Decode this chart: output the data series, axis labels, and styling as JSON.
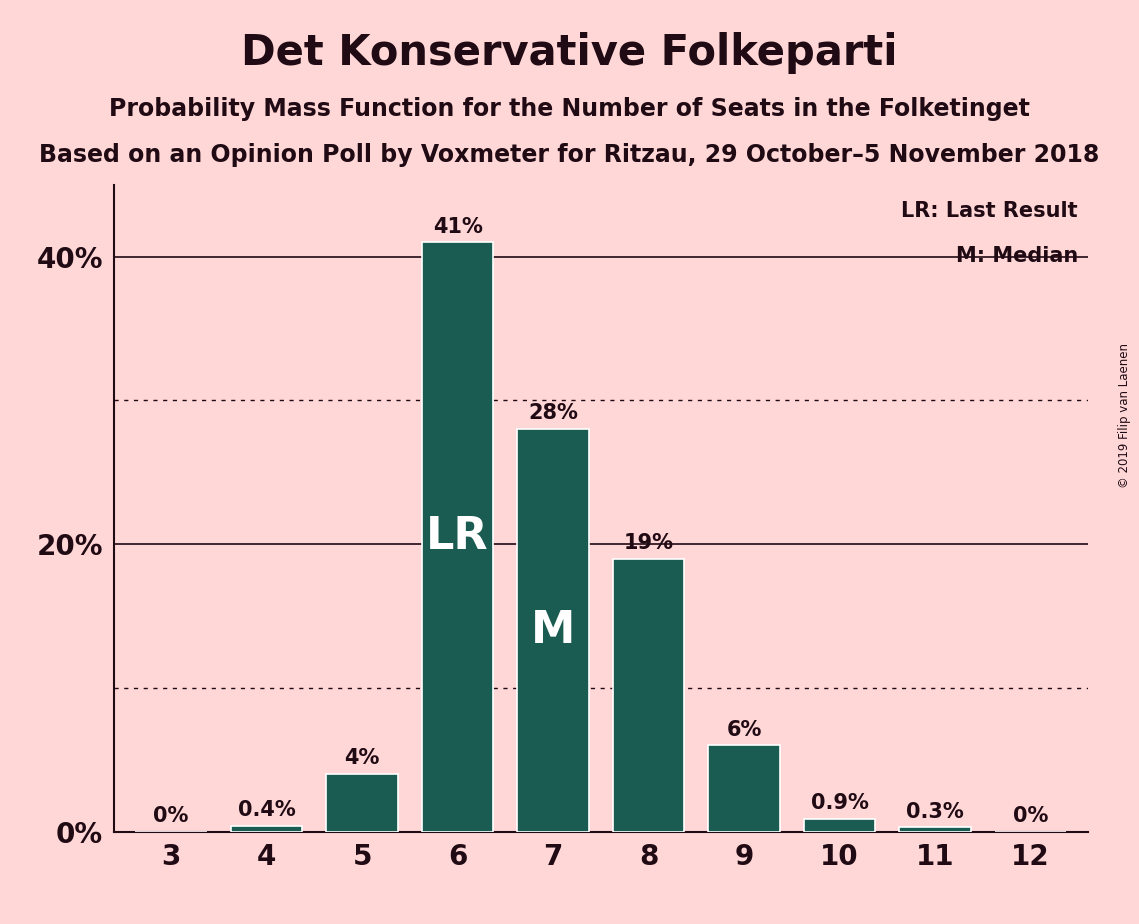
{
  "title": "Det Konservative Folkeparti",
  "subtitle1": "Probability Mass Function for the Number of Seats in the Folketinget",
  "subtitle2": "Based on an Opinion Poll by Voxmeter for Ritzau, 29 October–5 November 2018",
  "copyright": "© 2019 Filip van Laenen",
  "categories": [
    3,
    4,
    5,
    6,
    7,
    8,
    9,
    10,
    11,
    12
  ],
  "values": [
    0.0,
    0.4,
    4.0,
    41.0,
    28.0,
    19.0,
    6.0,
    0.9,
    0.3,
    0.0
  ],
  "bar_color": "#1a5c52",
  "bg_color": "#ffd7d7",
  "label_color": "#200a14",
  "bar_labels": [
    "0%",
    "0.4%",
    "4%",
    "41%",
    "28%",
    "19%",
    "6%",
    "0.9%",
    "0.3%",
    "0%"
  ],
  "lr_bar_index": 3,
  "median_bar_index": 4,
  "lr_label": "LR",
  "median_label": "M",
  "legend_lr": "LR: Last Result",
  "legend_m": "M: Median",
  "solid_yticks": [
    0,
    20,
    40
  ],
  "dotted_yticks": [
    10,
    30
  ],
  "ymax": 45
}
